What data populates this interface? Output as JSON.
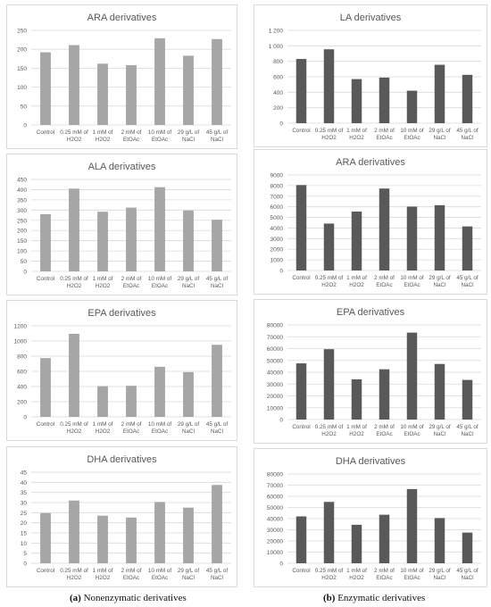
{
  "captions": {
    "left_tag": "(a)",
    "left_text": "Nonenzymatic derivatives",
    "right_tag": "(b)",
    "right_text": "Enzymatic derivatives"
  },
  "colors": {
    "nonenzymatic_bar": "#a6a6a6",
    "enzymatic_bar": "#595959",
    "grid": "#d9d9d9"
  },
  "chart_data": [
    {
      "type": "bar",
      "title": "ARA derivatives",
      "group": "Nonenzymatic derivatives",
      "categories": [
        [
          "Control"
        ],
        [
          "0.25 mM of",
          "H2O2"
        ],
        [
          "1 mM of",
          "H2O2"
        ],
        [
          "2 mM of",
          "EtOAc"
        ],
        [
          "10 mM of",
          "EtOAc"
        ],
        [
          "29 g/L of",
          "NaCl"
        ],
        [
          "45 g/L of",
          "NaCl"
        ]
      ],
      "values": [
        192,
        211,
        162,
        158,
        229,
        183,
        227
      ],
      "ylim": [
        0,
        250
      ],
      "yticks": [
        "0",
        "50",
        "100",
        "150",
        "200",
        "250"
      ],
      "grid": true
    },
    {
      "type": "bar",
      "title": "ALA derivatives",
      "group": "Nonenzymatic derivatives",
      "categories": [
        [
          "Control"
        ],
        [
          "0.25 mM of",
          "H2O2"
        ],
        [
          "1 mM of",
          "H2O2"
        ],
        [
          "2 mM of",
          "EtOAc"
        ],
        [
          "10 mM of",
          "EtOAc"
        ],
        [
          "29 g/L of",
          "NaCl"
        ],
        [
          "45 g/L of",
          "NaCl"
        ]
      ],
      "values": [
        280,
        405,
        292,
        312,
        412,
        298,
        253
      ],
      "ylim": [
        0,
        450
      ],
      "yticks": [
        "0",
        "50",
        "100",
        "150",
        "200",
        "250",
        "300",
        "350",
        "400",
        "450"
      ],
      "grid": true
    },
    {
      "type": "bar",
      "title": "EPA derivatives",
      "group": "Nonenzymatic derivatives",
      "categories": [
        [
          "Control"
        ],
        [
          "0.25 mM of",
          "H2O2"
        ],
        [
          "1 mM of",
          "H2O2"
        ],
        [
          "2 mM of",
          "EtOAc"
        ],
        [
          "10 mM of",
          "EtOAc"
        ],
        [
          "29 g/L of",
          "NaCl"
        ],
        [
          "45 g/L of",
          "NaCl"
        ]
      ],
      "values": [
        775,
        1095,
        405,
        410,
        660,
        590,
        950
      ],
      "ylim": [
        0,
        1200
      ],
      "yticks": [
        "0",
        "200",
        "400",
        "600",
        "800",
        "1000",
        "1200"
      ],
      "grid": true
    },
    {
      "type": "bar",
      "title": "DHA derivatives",
      "group": "Nonenzymatic derivatives",
      "categories": [
        [
          "Control"
        ],
        [
          "0.25 mM of",
          "H2O2"
        ],
        [
          "1 mM of",
          "H2O2"
        ],
        [
          "2 mM of",
          "EtOAc"
        ],
        [
          "10 mM of",
          "EtOAc"
        ],
        [
          "29 g/L of",
          "NaCl"
        ],
        [
          "45 g/L of",
          "NaCl"
        ]
      ],
      "values": [
        24.8,
        31,
        23.5,
        22.6,
        30.3,
        27.5,
        38.7
      ],
      "ylim": [
        0,
        45
      ],
      "yticks": [
        "0",
        "5",
        "10",
        "15",
        "20",
        "25",
        "30",
        "35",
        "40",
        "45"
      ],
      "grid": true
    },
    {
      "type": "bar",
      "title": "LA derivatives",
      "group": "Enzymatic derivatives",
      "categories": [
        [
          "Control"
        ],
        [
          "0.25 mM of",
          "H2O2"
        ],
        [
          "1 mM of",
          "H2O2"
        ],
        [
          "2 mM of",
          "EtOAc"
        ],
        [
          "10 mM of",
          "EtOAc"
        ],
        [
          "29 g/L of",
          "NaCl"
        ],
        [
          "45 g/L of",
          "NaCl"
        ]
      ],
      "values": [
        830,
        955,
        570,
        590,
        420,
        755,
        625
      ],
      "ylim": [
        0,
        1200
      ],
      "yticks": [
        "0",
        "200",
        "400",
        "600",
        "800",
        "1 000",
        "1 200"
      ],
      "grid": true
    },
    {
      "type": "bar",
      "title": "ARA derivatives",
      "group": "Enzymatic derivatives",
      "categories": [
        [
          "Control"
        ],
        [
          "0.25 mM of",
          "H2O2"
        ],
        [
          "1 mM of",
          "H2O2"
        ],
        [
          "2 mM of",
          "EtOAc"
        ],
        [
          "10 mM of",
          "EtOAc"
        ],
        [
          "29 g/L of",
          "NaCl"
        ],
        [
          "45 g/L of",
          "NaCl"
        ]
      ],
      "values": [
        8050,
        4420,
        5550,
        7720,
        6020,
        6150,
        4150
      ],
      "ylim": [
        0,
        9000
      ],
      "yticks": [
        "0",
        "1000",
        "2000",
        "3000",
        "4000",
        "5000",
        "6000",
        "7000",
        "8000",
        "9000"
      ],
      "grid": true
    },
    {
      "type": "bar",
      "title": "EPA derivatives",
      "group": "Enzymatic derivatives",
      "categories": [
        [
          "Control"
        ],
        [
          "0.25 mM of",
          "H2O2"
        ],
        [
          "1 mM of",
          "H2O2"
        ],
        [
          "2 mM of",
          "EtOAc"
        ],
        [
          "10 mM of",
          "EtOAc"
        ],
        [
          "29 g/L of",
          "NaCl"
        ],
        [
          "45 g/L of",
          "NaCl"
        ]
      ],
      "values": [
        47500,
        59500,
        34000,
        42500,
        73500,
        47000,
        33500
      ],
      "ylim": [
        0,
        80000
      ],
      "yticks": [
        "0",
        "10000",
        "20000",
        "30000",
        "40000",
        "50000",
        "60000",
        "70000",
        "80000"
      ],
      "grid": true
    },
    {
      "type": "bar",
      "title": "DHA derivatives",
      "group": "Enzymatic derivatives",
      "categories": [
        [
          "Control"
        ],
        [
          "0.25 mM of",
          "H2O2"
        ],
        [
          "1 mM of",
          "H2O2"
        ],
        [
          "2 mM of",
          "EtOAc"
        ],
        [
          "10 mM of",
          "EtOAc"
        ],
        [
          "29 g/L of",
          "NaCl"
        ],
        [
          "45 g/L of",
          "NaCl"
        ]
      ],
      "values": [
        42000,
        55000,
        34500,
        43500,
        66500,
        40500,
        27500
      ],
      "ylim": [
        0,
        80000
      ],
      "yticks": [
        "0",
        "10000",
        "20000",
        "30000",
        "40000",
        "50000",
        "60000",
        "70000",
        "80000"
      ],
      "grid": true
    }
  ]
}
